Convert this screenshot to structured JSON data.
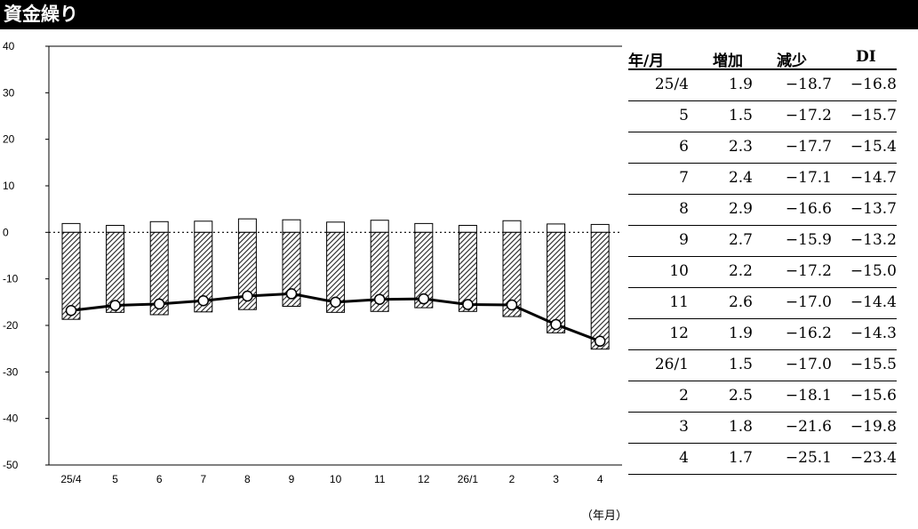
{
  "page": {
    "title": "資金繰り",
    "unit_label": "（年月）"
  },
  "chart_data": {
    "type": "bar",
    "categories": [
      "25/4",
      "5",
      "6",
      "7",
      "8",
      "9",
      "10",
      "11",
      "12",
      "26/1",
      "2",
      "3",
      "4"
    ],
    "series": [
      {
        "name": "増加",
        "kind": "bar",
        "fill": "#ffffff",
        "values": [
          1.9,
          1.5,
          2.3,
          2.4,
          2.9,
          2.7,
          2.2,
          2.6,
          1.9,
          1.5,
          2.5,
          1.8,
          1.7
        ]
      },
      {
        "name": "減少",
        "kind": "bar",
        "fill": "hatched",
        "values": [
          -18.7,
          -17.2,
          -17.7,
          -17.1,
          -16.6,
          -15.9,
          -17.2,
          -17.0,
          -16.2,
          -17.0,
          -18.1,
          -21.6,
          -25.1
        ]
      },
      {
        "name": "DI",
        "kind": "line",
        "color": "#000000",
        "values": [
          -16.8,
          -15.7,
          -15.4,
          -14.7,
          -13.7,
          -13.2,
          -15.0,
          -14.4,
          -14.3,
          -15.5,
          -15.6,
          -19.8,
          -23.4
        ]
      }
    ],
    "ylim": [
      -50,
      40
    ],
    "yticks": [
      40,
      30,
      20,
      10,
      0,
      -10,
      -20,
      -30,
      -40,
      -50
    ],
    "xlabel": "",
    "ylabel": "",
    "grid": false
  },
  "table": {
    "headers": [
      "年/月",
      "増加",
      "減少",
      "DI"
    ],
    "rows": [
      [
        "25/4",
        "1.9",
        "−18.7",
        "−16.8"
      ],
      [
        "5",
        "1.5",
        "−17.2",
        "−15.7"
      ],
      [
        "6",
        "2.3",
        "−17.7",
        "−15.4"
      ],
      [
        "7",
        "2.4",
        "−17.1",
        "−14.7"
      ],
      [
        "8",
        "2.9",
        "−16.6",
        "−13.7"
      ],
      [
        "9",
        "2.7",
        "−15.9",
        "−13.2"
      ],
      [
        "10",
        "2.2",
        "−17.2",
        "−15.0"
      ],
      [
        "11",
        "2.6",
        "−17.0",
        "−14.4"
      ],
      [
        "12",
        "1.9",
        "−16.2",
        "−14.3"
      ],
      [
        "26/1",
        "1.5",
        "−17.0",
        "−15.5"
      ],
      [
        "2",
        "2.5",
        "−18.1",
        "−15.6"
      ],
      [
        "3",
        "1.8",
        "−21.6",
        "−19.8"
      ],
      [
        "4",
        "1.7",
        "−25.1",
        "−23.4"
      ]
    ]
  }
}
